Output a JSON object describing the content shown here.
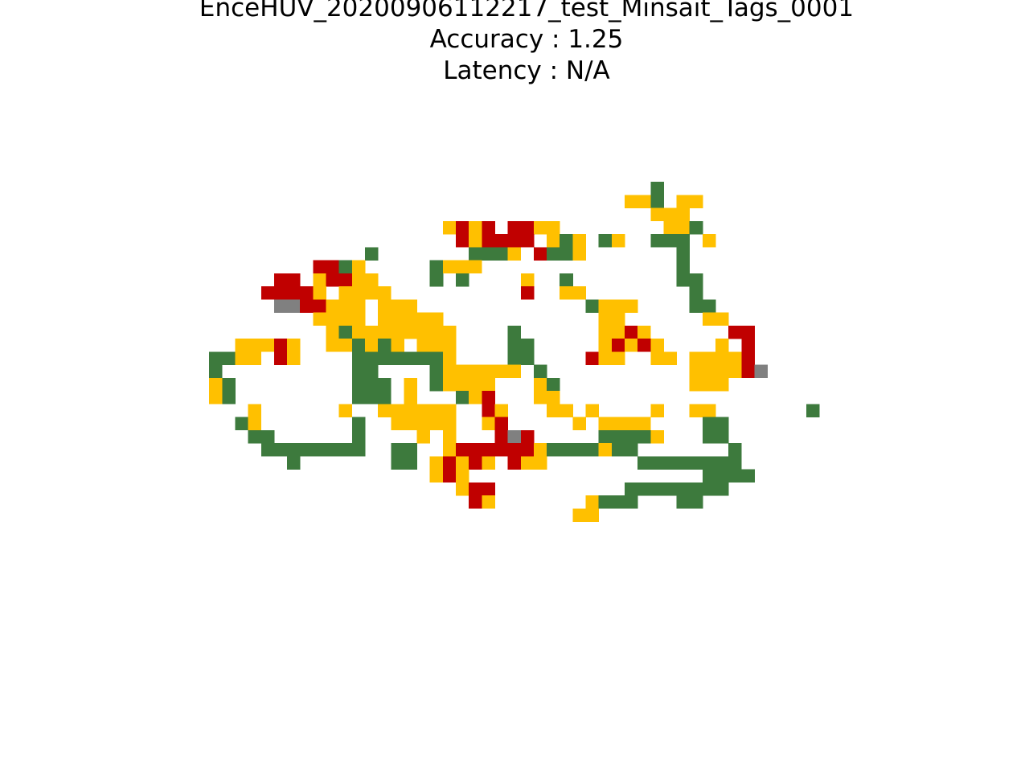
{
  "title": {
    "line1": "EnceHUV_20200906112217_test_Minsait_Tags_0001",
    "line2": "Accuracy : 1.25",
    "line3": "Latency : N/A"
  },
  "chart_data": {
    "type": "heatmap",
    "title": "EnceHUV_20200906112217_test_Minsait_Tags_0001\nAccuracy : 1.25\nLatency : N/A",
    "xlabel": "",
    "ylabel": "",
    "axes_visible": false,
    "grid": false,
    "legend": "none",
    "palette": {
      "G": "#3d7a3d",
      "Y": "#ffc000",
      "R": "#c00000",
      "X": "#808080"
    },
    "cells": [
      ". . . . . . . . . . . . . . . . . . . . . . . . . . . . . . . . . . . G . . . . . . . . . . . .",
      ". . . . . . . . . . . . . . . . . . . . . . . . . . . . . . . . . Y Y G . Y Y . . . . . . . . . .",
      ". . . . . . . . . . . . . . . . . . . . . . . . . . . . . . . . . . . Y Y Y . . . . . . . . . .",
      ". . . . . . . . . . . . . . . . . . . Y R Y R . R R Y Y . . . . . . . . Y Y G . . . . . . . . .",
      ". . . . . . . . . . . . . . . . . . . . R Y R R R R . Y G Y . G Y . . G G G . Y . . . . . . . .",
      ". . . . . . . . . . . . . G . . . . . . . G G G Y . R G G Y . . . . . . . G . . . . . . . . . .",
      ". . . . . . . . . R R G Y . . . . . G Y Y Y . . . . . . . . . . . . . . . G . . . . . . . . . .",
      ". . . . . . R R . Y R R Y Y . . . . G . G . . . . Y . . G . . . . . . . . G G . . . . . . . . .",
      ". . . . . R R R R Y . Y Y Y Y . . . . . . . . . . R . . Y Y . . . . . . . . G . . . . . . . . .",
      ". . . . . . X X R R Y Y Y . Y Y Y . . . . . . . . . . . . . G Y Y Y . . . . G G . . . . . . . .",
      ". . . . . . . . . Y Y Y Y . Y Y Y Y Y . . . . . . . . . . . . Y Y . . . . . . Y Y . . . . . . .",
      ". . . . . . . . . . Y G Y Y Y Y Y Y Y Y . . . . G . . . . . . Y Y R Y . . . . . . R R . . . . .",
      ". . . Y Y Y R Y . . Y Y G Y G Y . Y Y Y . . . . G G . . . . . Y R Y R Y . . . . Y . R . . . . .",
      ". G G Y Y . R Y . . . . G G G G G G G Y . . . . G G . . . . R Y Y . . Y Y . Y Y Y Y R . . . . .",
      ". G . . . . . . . . . . G G . . . . G Y Y Y Y Y Y . G . . . . . . . . . . . Y Y Y Y R X . . . .",
      ". Y G . . . . . . . . . G G G . Y . G Y Y Y Y . . . Y G . . . . . . . . . . Y Y Y . . . . . . .",
      ". Y G . . . . . . . . . G G G . Y . . . G Y R . . . Y Y . . . . . . . . . . . . . . . . . . . .",
      ". . . . Y . . . . . . Y . . Y Y Y Y Y Y . . R Y . . . Y Y . Y . . . . Y . . Y Y . . . . . . . G",
      ". . . G Y . . . . . . . G . . Y Y Y Y Y . . Y R . . . . . Y . Y Y Y Y . . . . G G . . . . . . .",
      ". . . . G G . . . . . . G . . . . Y . Y . . . R X R . . . . . G G G G Y . . . G G . . . . . . .",
      ". . . . . G G G G G G G G . . G G . . Y R R R R R R Y G G G G Y G G . . . . . . . G . . . . . .",
      ". . . . . . . G . . . . . . . G G . Y R Y R Y . R Y Y . . . . . . . G G G G G G G G . . . . . .",
      ". . . . . . . . . . . . . . . . . . Y R Y . . . . . . . . . . . . . . . . . . G G G G . . . . .",
      ". . . . . . . . . . . . . . . . . . . . Y R R . . . . . . . . . . G G G G G G G G . . . . . . .",
      ". . . . . . . . . . . . . . . . . . . . . R Y . . . . . . . Y G G G . . . G G . . . . . . . . .",
      ". . . . . . . . . . . . . . . . . . . . . . . . . . . . . Y Y . . . . . . . . . . . . . . . . ."
    ]
  }
}
